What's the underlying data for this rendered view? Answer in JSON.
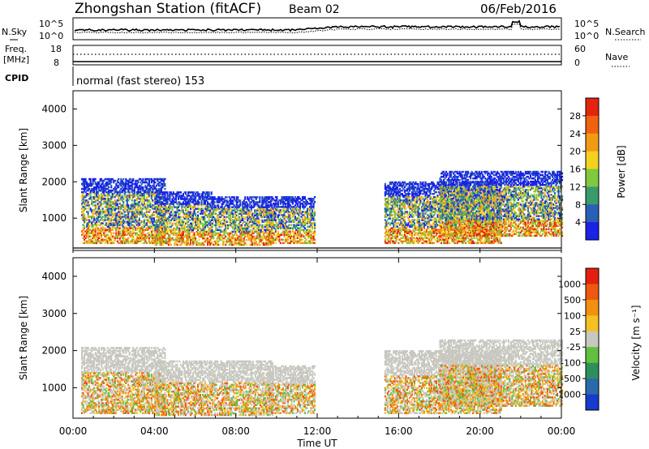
{
  "header": {
    "station": "Zhongshan Station (fitACF)",
    "beam": "Beam 02",
    "date": "06/Feb/2016"
  },
  "noise_panel": {
    "left_label": "N.Sky",
    "right_label": "N.Search",
    "left_ticks": [
      "10^5",
      "10^0"
    ],
    "right_ticks": [
      "10^5",
      "10^0"
    ]
  },
  "freq_panel": {
    "left_label_1": "Freq.",
    "left_label_2": "[MHz]",
    "right_label": "Nave",
    "left_ticks": [
      "18",
      "8"
    ],
    "right_ticks": [
      "60",
      "0"
    ]
  },
  "cpid": {
    "label": "CPID",
    "mode_text": "normal (fast stereo) 153"
  },
  "x_axis": {
    "title": "Time UT",
    "ticks": [
      "00:00",
      "04:00",
      "08:00",
      "12:00",
      "16:00",
      "20:00",
      "00:00"
    ]
  },
  "chart_data": [
    {
      "type": "heatmap",
      "name": "power",
      "ylabel": "Slant Range [km]",
      "yticks": [
        "1000",
        "2000",
        "3000",
        "4000"
      ],
      "ylim": [
        180,
        4500
      ],
      "xlim_hours": [
        0,
        24
      ],
      "colorbar": {
        "label": "Power [dB]",
        "ticks": [
          "4",
          "8",
          "12",
          "16",
          "20",
          "24",
          "28"
        ],
        "colors": [
          "#1a22e6",
          "#2a5fb8",
          "#3a9a6a",
          "#7fc93e",
          "#f3d21f",
          "#f29b12",
          "#ee6210",
          "#e32410"
        ]
      },
      "regions": [
        {
          "t": [
            0.4,
            4.5
          ],
          "range": [
            300,
            2100
          ],
          "level": "mixed"
        },
        {
          "t": [
            4.0,
            6.8
          ],
          "range": [
            250,
            1700
          ],
          "level": "mixed"
        },
        {
          "t": [
            6.8,
            9.8
          ],
          "range": [
            250,
            1600
          ],
          "level": "mixed"
        },
        {
          "t": [
            9.5,
            11.9
          ],
          "range": [
            300,
            1600
          ],
          "level": "mixed"
        },
        {
          "t": [
            15.3,
            21.0
          ],
          "range": [
            300,
            2000
          ],
          "level": "mixed"
        },
        {
          "t": [
            18.0,
            24.0
          ],
          "range": [
            500,
            2300
          ],
          "level": "mixed"
        }
      ]
    },
    {
      "type": "heatmap",
      "name": "velocity",
      "ylabel": "Slant Range [km]",
      "yticks": [
        "1000",
        "2000",
        "3000",
        "4000"
      ],
      "ylim": [
        180,
        4500
      ],
      "xlim_hours": [
        0,
        24
      ],
      "colorbar": {
        "label": "Velocity [m s⁻¹]",
        "ticks": [
          "1000",
          "500",
          "100",
          "25",
          "-25",
          "-100",
          "-500",
          "-1000"
        ],
        "colors": [
          "#1a3acb",
          "#2a6aa8",
          "#2f8f5a",
          "#60c040",
          "#c8c8c0",
          "#f5c020",
          "#f29010",
          "#ee5810",
          "#e32010"
        ]
      },
      "regions": [
        {
          "t": [
            0.4,
            4.5
          ],
          "range": [
            300,
            2100
          ],
          "level": "mixed"
        },
        {
          "t": [
            4.0,
            9.8
          ],
          "range": [
            250,
            1700
          ],
          "level": "mixed"
        },
        {
          "t": [
            9.5,
            11.9
          ],
          "range": [
            300,
            1600
          ],
          "level": "mixed"
        },
        {
          "t": [
            15.3,
            21.0
          ],
          "range": [
            300,
            2000
          ],
          "level": "mixed"
        },
        {
          "t": [
            18.0,
            24.0
          ],
          "range": [
            500,
            2300
          ],
          "level": "mixed"
        }
      ]
    }
  ]
}
